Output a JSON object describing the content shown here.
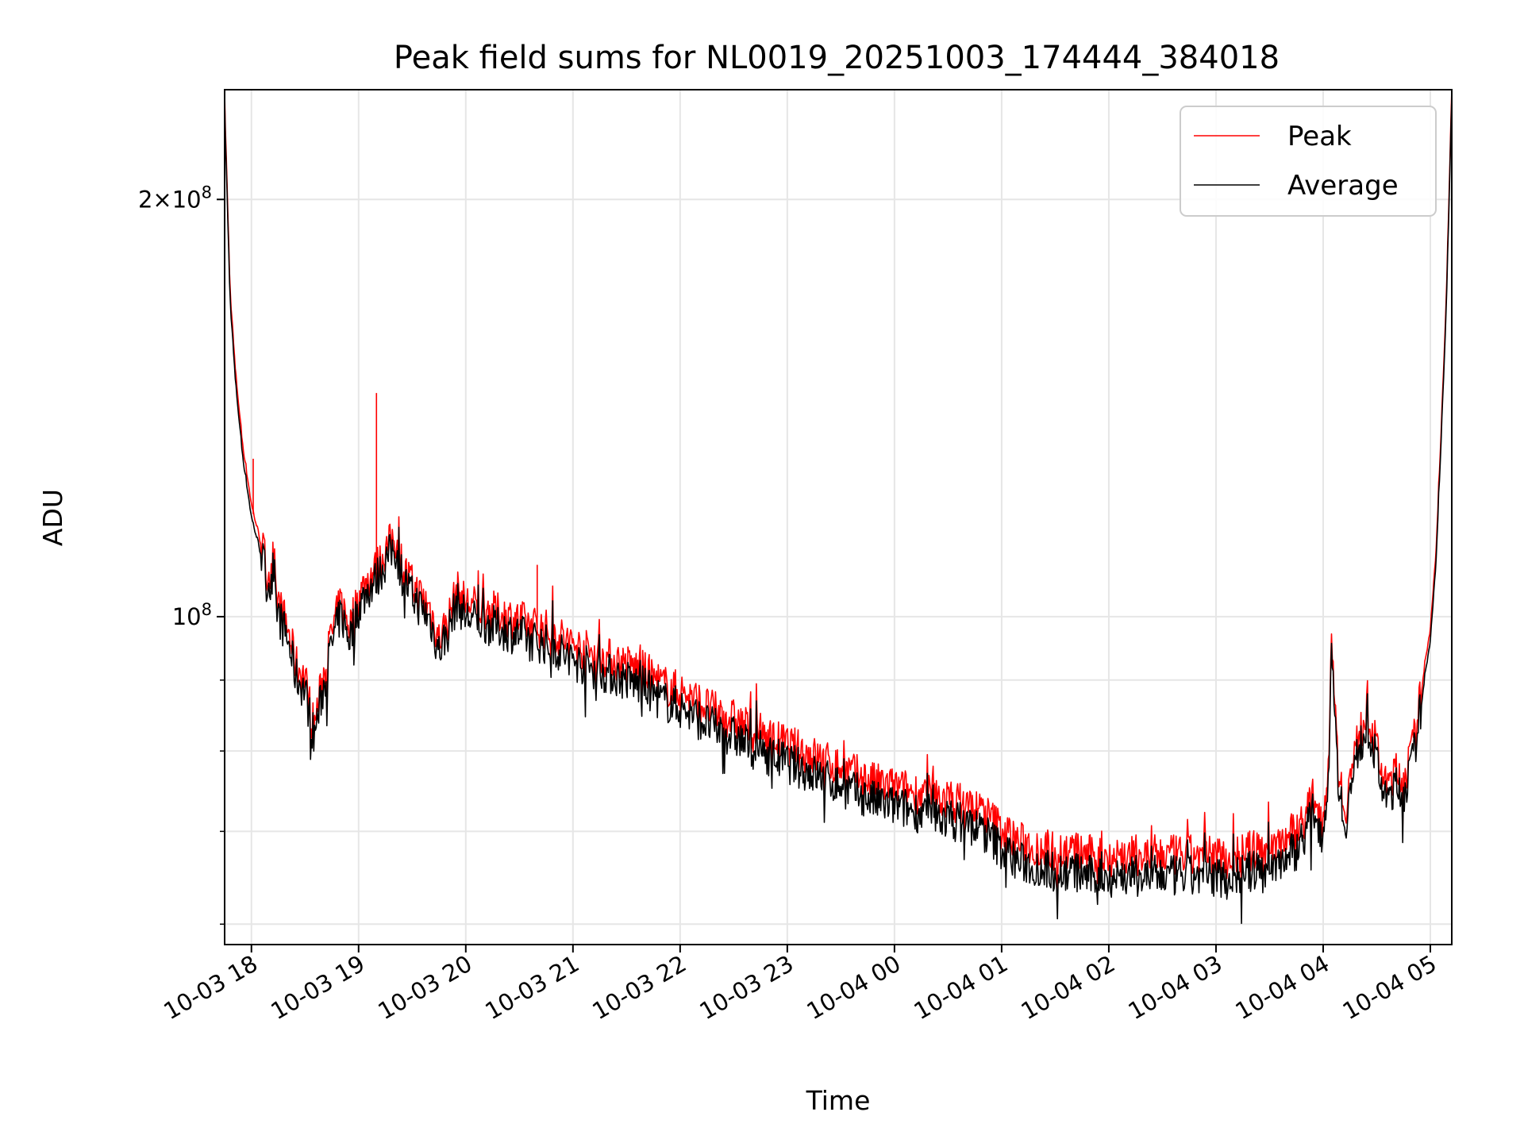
{
  "chart_data": {
    "type": "line",
    "title": "Peak field sums for NL0019_20251003_174444_384018",
    "xlabel": "Time",
    "ylabel": "ADU",
    "y_scale": "log",
    "ylim": [
      58000000,
      240000000
    ],
    "xlim": [
      "2025-10-03 17:45",
      "2025-10-04 05:12"
    ],
    "grid": true,
    "legend_position": "top-right",
    "x_ticks": [
      {
        "value": "2025-10-03 18:00",
        "label": "10-03 18"
      },
      {
        "value": "2025-10-03 19:00",
        "label": "10-03 19"
      },
      {
        "value": "2025-10-03 20:00",
        "label": "10-03 20"
      },
      {
        "value": "2025-10-03 21:00",
        "label": "10-03 21"
      },
      {
        "value": "2025-10-03 22:00",
        "label": "10-03 22"
      },
      {
        "value": "2025-10-03 23:00",
        "label": "10-03 23"
      },
      {
        "value": "2025-10-04 00:00",
        "label": "10-04 00"
      },
      {
        "value": "2025-10-04 01:00",
        "label": "10-04 01"
      },
      {
        "value": "2025-10-04 02:00",
        "label": "10-04 02"
      },
      {
        "value": "2025-10-04 03:00",
        "label": "10-04 03"
      },
      {
        "value": "2025-10-04 04:00",
        "label": "10-04 04"
      },
      {
        "value": "2025-10-04 05:00",
        "label": "10-04 05"
      }
    ],
    "y_major_ticks": [
      {
        "value": 100000000,
        "base": "10",
        "exp": "8"
      },
      {
        "value": 200000000,
        "mant": "2",
        "base": "10",
        "exp": "8"
      }
    ],
    "y_minor_ticks": [
      60000000,
      70000000,
      80000000,
      90000000
    ],
    "series": [
      {
        "name": "Peak",
        "color": "#ff0000",
        "points": [
          [
            "2025-10-03 17:45",
            235000000
          ],
          [
            "2025-10-03 17:48",
            172000000
          ],
          [
            "2025-10-03 17:51",
            150000000
          ],
          [
            "2025-10-03 17:55",
            133000000
          ],
          [
            "2025-10-03 18:00",
            120000000
          ],
          [
            "2025-10-03 18:05",
            113000000
          ],
          [
            "2025-10-03 18:10",
            107000000
          ],
          [
            "2025-10-03 18:15",
            102000000
          ],
          [
            "2025-10-03 18:20",
            98000000
          ],
          [
            "2025-10-03 18:25",
            92000000
          ],
          [
            "2025-10-03 18:30",
            90000000
          ],
          [
            "2025-10-03 18:35",
            83000000
          ],
          [
            "2025-10-03 18:40",
            90000000
          ],
          [
            "2025-10-03 18:45",
            97000000
          ],
          [
            "2025-10-03 18:50",
            102000000
          ],
          [
            "2025-10-03 18:55",
            98000000
          ],
          [
            "2025-10-03 19:00",
            103000000
          ],
          [
            "2025-10-03 19:05",
            106000000
          ],
          [
            "2025-10-03 19:10",
            108000000
          ],
          [
            "2025-10-03 19:15",
            111000000
          ],
          [
            "2025-10-03 19:20",
            114000000
          ],
          [
            "2025-10-03 19:25",
            108000000
          ],
          [
            "2025-10-03 19:30",
            105000000
          ],
          [
            "2025-10-03 19:35",
            103000000
          ],
          [
            "2025-10-03 19:40",
            101000000
          ],
          [
            "2025-10-03 19:45",
            96000000
          ],
          [
            "2025-10-03 19:50",
            99000000
          ],
          [
            "2025-10-03 19:55",
            104000000
          ],
          [
            "2025-10-03 20:00",
            102000000
          ],
          [
            "2025-10-03 20:10",
            101000000
          ],
          [
            "2025-10-03 20:20",
            100000000
          ],
          [
            "2025-10-03 20:30",
            99000000
          ],
          [
            "2025-10-03 20:40",
            98000000
          ],
          [
            "2025-10-03 20:50",
            97000000
          ],
          [
            "2025-10-03 21:00",
            95000000
          ],
          [
            "2025-10-03 21:10",
            94000000
          ],
          [
            "2025-10-03 21:20",
            93000000
          ],
          [
            "2025-10-03 21:30",
            92000000
          ],
          [
            "2025-10-03 21:40",
            91000000
          ],
          [
            "2025-10-03 21:50",
            89000000
          ],
          [
            "2025-10-03 22:00",
            88000000
          ],
          [
            "2025-10-03 22:10",
            86500000
          ],
          [
            "2025-10-03 22:20",
            85000000
          ],
          [
            "2025-10-03 22:30",
            84000000
          ],
          [
            "2025-10-03 22:40",
            82500000
          ],
          [
            "2025-10-03 22:50",
            81500000
          ],
          [
            "2025-10-03 23:00",
            80500000
          ],
          [
            "2025-10-03 23:10",
            79500000
          ],
          [
            "2025-10-03 23:20",
            78500000
          ],
          [
            "2025-10-03 23:30",
            77500000
          ],
          [
            "2025-10-03 23:40",
            76500000
          ],
          [
            "2025-10-03 23:50",
            75500000
          ],
          [
            "2025-10-04 00:00",
            75000000
          ],
          [
            "2025-10-04 00:10",
            74500000
          ],
          [
            "2025-10-04 00:20",
            74000000
          ],
          [
            "2025-10-04 00:30",
            73500000
          ],
          [
            "2025-10-04 00:40",
            73000000
          ],
          [
            "2025-10-04 00:50",
            72000000
          ],
          [
            "2025-10-04 01:00",
            70000000
          ],
          [
            "2025-10-04 01:10",
            68500000
          ],
          [
            "2025-10-04 01:20",
            68000000
          ],
          [
            "2025-10-04 01:30",
            67500000
          ],
          [
            "2025-10-04 01:40",
            67500000
          ],
          [
            "2025-10-04 01:50",
            67000000
          ],
          [
            "2025-10-04 02:00",
            67000000
          ],
          [
            "2025-10-04 02:10",
            67000000
          ],
          [
            "2025-10-04 02:20",
            67000000
          ],
          [
            "2025-10-04 02:30",
            67000000
          ],
          [
            "2025-10-04 02:40",
            67000000
          ],
          [
            "2025-10-04 02:50",
            67000000
          ],
          [
            "2025-10-04 03:00",
            67000000
          ],
          [
            "2025-10-04 03:10",
            67000000
          ],
          [
            "2025-10-04 03:20",
            67500000
          ],
          [
            "2025-10-04 03:30",
            68000000
          ],
          [
            "2025-10-04 03:38",
            69000000
          ],
          [
            "2025-10-04 03:45",
            70000000
          ],
          [
            "2025-10-04 03:50",
            71500000
          ],
          [
            "2025-10-04 03:55",
            74000000
          ],
          [
            "2025-10-04 04:00",
            71000000
          ],
          [
            "2025-10-04 04:03",
            79000000
          ],
          [
            "2025-10-04 04:05",
            97000000
          ],
          [
            "2025-10-04 04:08",
            79000000
          ],
          [
            "2025-10-04 04:12",
            72000000
          ],
          [
            "2025-10-04 04:15",
            76000000
          ],
          [
            "2025-10-04 04:20",
            82000000
          ],
          [
            "2025-10-04 04:25",
            85000000
          ],
          [
            "2025-10-04 04:30",
            80000000
          ],
          [
            "2025-10-04 04:35",
            75000000
          ],
          [
            "2025-10-04 04:40",
            77000000
          ],
          [
            "2025-10-04 04:45",
            76000000
          ],
          [
            "2025-10-04 04:50",
            80000000
          ],
          [
            "2025-10-04 04:55",
            88000000
          ],
          [
            "2025-10-04 05:00",
            98000000
          ],
          [
            "2025-10-04 05:03",
            110000000
          ],
          [
            "2025-10-04 05:06",
            135000000
          ],
          [
            "2025-10-04 05:09",
            170000000
          ],
          [
            "2025-10-04 05:12",
            240000000
          ]
        ],
        "spikes": [
          [
            "2025-10-03 18:01",
            130000000
          ],
          [
            "2025-10-03 19:10",
            145000000
          ],
          [
            "2025-10-03 20:40",
            109000000
          ]
        ]
      },
      {
        "name": "Average",
        "color": "#000000",
        "points": [
          [
            "2025-10-03 17:45",
            233000000
          ],
          [
            "2025-10-03 17:48",
            170000000
          ],
          [
            "2025-10-03 17:51",
            148000000
          ],
          [
            "2025-10-03 17:55",
            131000000
          ],
          [
            "2025-10-03 18:00",
            118000000
          ],
          [
            "2025-10-03 18:05",
            111500000
          ],
          [
            "2025-10-03 18:10",
            105500000
          ],
          [
            "2025-10-03 18:15",
            100500000
          ],
          [
            "2025-10-03 18:20",
            96500000
          ],
          [
            "2025-10-03 18:25",
            90500000
          ],
          [
            "2025-10-03 18:30",
            88500000
          ],
          [
            "2025-10-03 18:35",
            82000000
          ],
          [
            "2025-10-03 18:40",
            88500000
          ],
          [
            "2025-10-03 18:45",
            95500000
          ],
          [
            "2025-10-03 18:50",
            100500000
          ],
          [
            "2025-10-03 18:55",
            96500000
          ],
          [
            "2025-10-03 19:00",
            101500000
          ],
          [
            "2025-10-03 19:05",
            104500000
          ],
          [
            "2025-10-03 19:10",
            106500000
          ],
          [
            "2025-10-03 19:15",
            109500000
          ],
          [
            "2025-10-03 19:20",
            112500000
          ],
          [
            "2025-10-03 19:25",
            106500000
          ],
          [
            "2025-10-03 19:30",
            103500000
          ],
          [
            "2025-10-03 19:35",
            101500000
          ],
          [
            "2025-10-03 19:40",
            99500000
          ],
          [
            "2025-10-03 19:45",
            94500000
          ],
          [
            "2025-10-03 19:50",
            97500000
          ],
          [
            "2025-10-03 19:55",
            102500000
          ],
          [
            "2025-10-03 20:00",
            100000000
          ],
          [
            "2025-10-03 20:10",
            99000000
          ],
          [
            "2025-10-03 20:20",
            98000000
          ],
          [
            "2025-10-03 20:30",
            97000000
          ],
          [
            "2025-10-03 20:40",
            96000000
          ],
          [
            "2025-10-03 20:50",
            95000000
          ],
          [
            "2025-10-03 21:00",
            93000000
          ],
          [
            "2025-10-03 21:10",
            92000000
          ],
          [
            "2025-10-03 21:20",
            91000000
          ],
          [
            "2025-10-03 21:30",
            90000000
          ],
          [
            "2025-10-03 21:40",
            89000000
          ],
          [
            "2025-10-03 21:50",
            87000000
          ],
          [
            "2025-10-03 22:00",
            86000000
          ],
          [
            "2025-10-03 22:10",
            84500000
          ],
          [
            "2025-10-03 22:20",
            83000000
          ],
          [
            "2025-10-03 22:30",
            82000000
          ],
          [
            "2025-10-03 22:40",
            80500000
          ],
          [
            "2025-10-03 22:50",
            79500000
          ],
          [
            "2025-10-03 23:00",
            78500000
          ],
          [
            "2025-10-03 23:10",
            77500000
          ],
          [
            "2025-10-03 23:20",
            76500000
          ],
          [
            "2025-10-03 23:30",
            75500000
          ],
          [
            "2025-10-03 23:40",
            74500000
          ],
          [
            "2025-10-03 23:50",
            73500000
          ],
          [
            "2025-10-04 00:00",
            73000000
          ],
          [
            "2025-10-04 00:10",
            72500000
          ],
          [
            "2025-10-04 00:20",
            72000000
          ],
          [
            "2025-10-04 00:30",
            71500000
          ],
          [
            "2025-10-04 00:40",
            71000000
          ],
          [
            "2025-10-04 00:50",
            70000000
          ],
          [
            "2025-10-04 01:00",
            68000000
          ],
          [
            "2025-10-04 01:10",
            66500000
          ],
          [
            "2025-10-04 01:20",
            66000000
          ],
          [
            "2025-10-04 01:30",
            65500000
          ],
          [
            "2025-10-04 01:40",
            65500000
          ],
          [
            "2025-10-04 01:50",
            65000000
          ],
          [
            "2025-10-04 02:00",
            65000000
          ],
          [
            "2025-10-04 02:10",
            65000000
          ],
          [
            "2025-10-04 02:20",
            65000000
          ],
          [
            "2025-10-04 02:30",
            65000000
          ],
          [
            "2025-10-04 02:40",
            65000000
          ],
          [
            "2025-10-04 02:50",
            65000000
          ],
          [
            "2025-10-04 03:00",
            65000000
          ],
          [
            "2025-10-04 03:10",
            65000000
          ],
          [
            "2025-10-04 03:20",
            65500000
          ],
          [
            "2025-10-04 03:30",
            66000000
          ],
          [
            "2025-10-04 03:38",
            67000000
          ],
          [
            "2025-10-04 03:45",
            68000000
          ],
          [
            "2025-10-04 03:50",
            70000000
          ],
          [
            "2025-10-04 03:55",
            72500000
          ],
          [
            "2025-10-04 04:00",
            69500000
          ],
          [
            "2025-10-04 04:03",
            77500000
          ],
          [
            "2025-10-04 04:05",
            96000000
          ],
          [
            "2025-10-04 04:08",
            77500000
          ],
          [
            "2025-10-04 04:12",
            70500000
          ],
          [
            "2025-10-04 04:15",
            74500000
          ],
          [
            "2025-10-04 04:20",
            80500000
          ],
          [
            "2025-10-04 04:25",
            83500000
          ],
          [
            "2025-10-04 04:30",
            78500000
          ],
          [
            "2025-10-04 04:35",
            73500000
          ],
          [
            "2025-10-04 04:40",
            75500000
          ],
          [
            "2025-10-04 04:45",
            74500000
          ],
          [
            "2025-10-04 04:50",
            78500000
          ],
          [
            "2025-10-04 04:55",
            86500000
          ],
          [
            "2025-10-04 05:00",
            96500000
          ],
          [
            "2025-10-04 05:03",
            108500000
          ],
          [
            "2025-10-04 05:06",
            133500000
          ],
          [
            "2025-10-04 05:09",
            168000000
          ],
          [
            "2025-10-04 05:12",
            238000000
          ]
        ]
      }
    ]
  }
}
